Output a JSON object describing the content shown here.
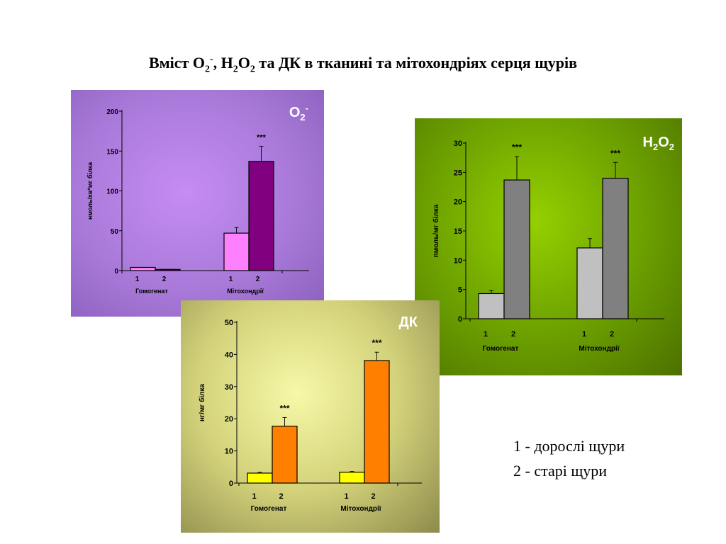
{
  "title": {
    "part1": "Вміст O",
    "sub1": "2",
    "sup1": "-",
    "part2": ", H",
    "sub2": "2",
    "part3": "O",
    "sub3": "2",
    "part4": " та ДК  в тканині та мітохондріях серця  щурів"
  },
  "legend": {
    "line1": "1 - дорослі щури",
    "line2": "2 - старі щури"
  },
  "chart_data": [
    {
      "type": "bar",
      "label_base": "O",
      "label_sub": "2",
      "label_sup": "-",
      "ylabel": "нмоль/хв*мг білка",
      "ylim": [
        0,
        200
      ],
      "yticks": [
        0,
        50,
        100,
        150,
        200
      ],
      "groups": [
        {
          "name": "Гомогенат",
          "bars": [
            {
              "label": "1",
              "value": 4,
              "err": 0
            },
            {
              "label": "2",
              "value": 1.5,
              "err": 0
            }
          ]
        },
        {
          "name": "Мітохондрії",
          "bars": [
            {
              "label": "1",
              "value": 47,
              "err": 7
            },
            {
              "label": "2",
              "value": 137,
              "err": 19,
              "sig": "***"
            }
          ]
        }
      ],
      "colors": [
        "#ff80ff",
        "#800080"
      ]
    },
    {
      "type": "bar",
      "label_base": "H",
      "label_sub": "2",
      "label_mid": "O",
      "label_sub2": "2",
      "ylabel": "пмоль/мг білка",
      "ylim": [
        0,
        30
      ],
      "yticks": [
        0,
        5,
        10,
        15,
        20,
        25,
        30
      ],
      "groups": [
        {
          "name": "Гомогенат",
          "bars": [
            {
              "label": "1",
              "value": 4.3,
              "err": 0.5
            },
            {
              "label": "2",
              "value": 23.7,
              "err": 4,
              "sig": "***"
            }
          ]
        },
        {
          "name": "Мітохондрії",
          "bars": [
            {
              "label": "1",
              "value": 12.1,
              "err": 1.6
            },
            {
              "label": "2",
              "value": 24,
              "err": 2.7,
              "sig": "***"
            }
          ]
        }
      ],
      "colors": [
        "#c0c0c0",
        "#808080"
      ]
    },
    {
      "type": "bar",
      "label_base": "ДК",
      "ylabel": "нг/мг білка",
      "ylim": [
        0,
        50
      ],
      "yticks": [
        0,
        10,
        20,
        30,
        40,
        50
      ],
      "groups": [
        {
          "name": "Гомогенат",
          "bars": [
            {
              "label": "1",
              "value": 3.1,
              "err": 0.3
            },
            {
              "label": "2",
              "value": 17.7,
              "err": 2.7,
              "sig": "***"
            }
          ]
        },
        {
          "name": "Мітохондрії",
          "bars": [
            {
              "label": "1",
              "value": 3.4,
              "err": 0.2
            },
            {
              "label": "2",
              "value": 38.1,
              "err": 2.6,
              "sig": "***"
            }
          ]
        }
      ],
      "colors": [
        "#ffff00",
        "#ff8000"
      ]
    }
  ]
}
